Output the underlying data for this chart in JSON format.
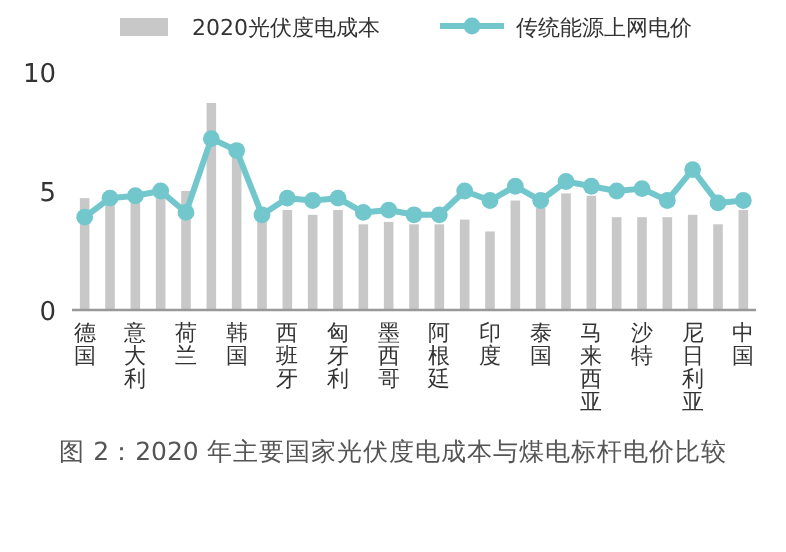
{
  "chart_data": {
    "type": "bar",
    "title": "图 2：2020 年主要国家光伏度电成本与煤电标杆电价比较",
    "categories": [
      "德国",
      null,
      "意大利",
      null,
      "荷兰",
      null,
      "韩国",
      null,
      "西班牙",
      null,
      "匈牙利",
      null,
      "墨西哥",
      null,
      "阿根廷",
      null,
      "印度",
      null,
      "泰国",
      null,
      "马来西亚",
      null,
      "沙特",
      null,
      "尼日利亚",
      null,
      "中国"
    ],
    "series": [
      {
        "name": "2020光伏度电成本",
        "color": "#c8c8c8",
        "values": [
          4.7,
          4.6,
          4.6,
          4.8,
          5.0,
          8.7,
          6.7,
          4.0,
          4.2,
          4.0,
          4.2,
          3.6,
          3.7,
          3.6,
          3.6,
          3.8,
          3.3,
          4.6,
          4.3,
          4.9,
          4.8,
          3.9,
          3.9,
          3.9,
          4.0,
          3.6,
          4.2
        ]
      },
      {
        "name": "传统能源上网电价",
        "type": "line",
        "color": "#72c7cd",
        "marker": "circle",
        "values": [
          3.9,
          4.7,
          4.8,
          5.0,
          4.1,
          7.2,
          6.7,
          4.0,
          4.7,
          4.6,
          4.7,
          4.1,
          4.2,
          4.0,
          4.0,
          5.0,
          4.6,
          5.2,
          4.6,
          5.4,
          5.2,
          5.0,
          5.1,
          4.6,
          5.9,
          4.5,
          4.6
        ]
      }
    ],
    "ylim": [
      0,
      10
    ],
    "yticks": [
      0,
      5,
      10
    ],
    "grid": false,
    "legend": "top"
  }
}
